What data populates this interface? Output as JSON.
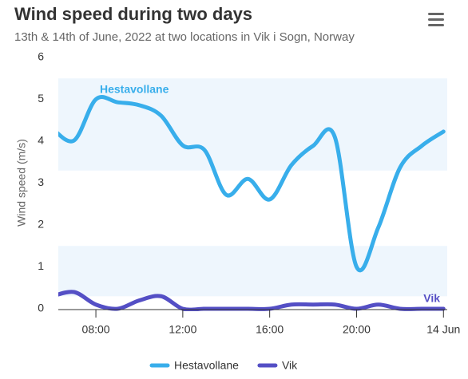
{
  "chart_data": {
    "type": "spline",
    "title": "Wind speed during two days",
    "subtitle": "13th & 14th of June, 2022 at two locations in Vik i Sogn, Norway",
    "y_axis_label": "Wind speed (m/s)",
    "x": [
      6,
      7,
      8,
      9,
      10,
      11,
      12,
      13,
      14,
      15,
      16,
      17,
      18,
      19,
      20,
      21,
      22,
      23,
      24
    ],
    "series": [
      {
        "name": "Hestavollane",
        "color": "#38aeeb",
        "values": [
          4.3,
          4.02,
          5.0,
          4.93,
          4.86,
          4.61,
          3.9,
          3.79,
          2.72,
          3.1,
          2.61,
          3.43,
          3.89,
          4.1,
          1.0,
          1.94,
          3.37,
          3.89,
          4.23
        ]
      },
      {
        "name": "Vik",
        "color": "#544fc5",
        "values": [
          0.3,
          0.4,
          0.1,
          0.0,
          0.2,
          0.3,
          0.0,
          0.0,
          0.0,
          0.0,
          0.0,
          0.1,
          0.1,
          0.1,
          0.0,
          0.1,
          0.0,
          0.0,
          0.0
        ]
      }
    ],
    "plot_bands": [
      {
        "from": 3.3,
        "to": 5.5
      },
      {
        "from": 0.3,
        "to": 1.5
      }
    ],
    "plot_band_color": "#eef6fd",
    "xlim": [
      6.27,
      24.1
    ],
    "xticks": [
      {
        "value": 8,
        "label": "08:00"
      },
      {
        "value": 12,
        "label": "12:00"
      },
      {
        "value": 16,
        "label": "16:00"
      },
      {
        "value": 20,
        "label": "20:00"
      },
      {
        "value": 24,
        "label": "14 Jun"
      }
    ],
    "ylim": [
      0,
      6
    ],
    "yticks": [
      0,
      1,
      2,
      3,
      4,
      5,
      6
    ],
    "grid": false,
    "legend_position": "bottom"
  }
}
